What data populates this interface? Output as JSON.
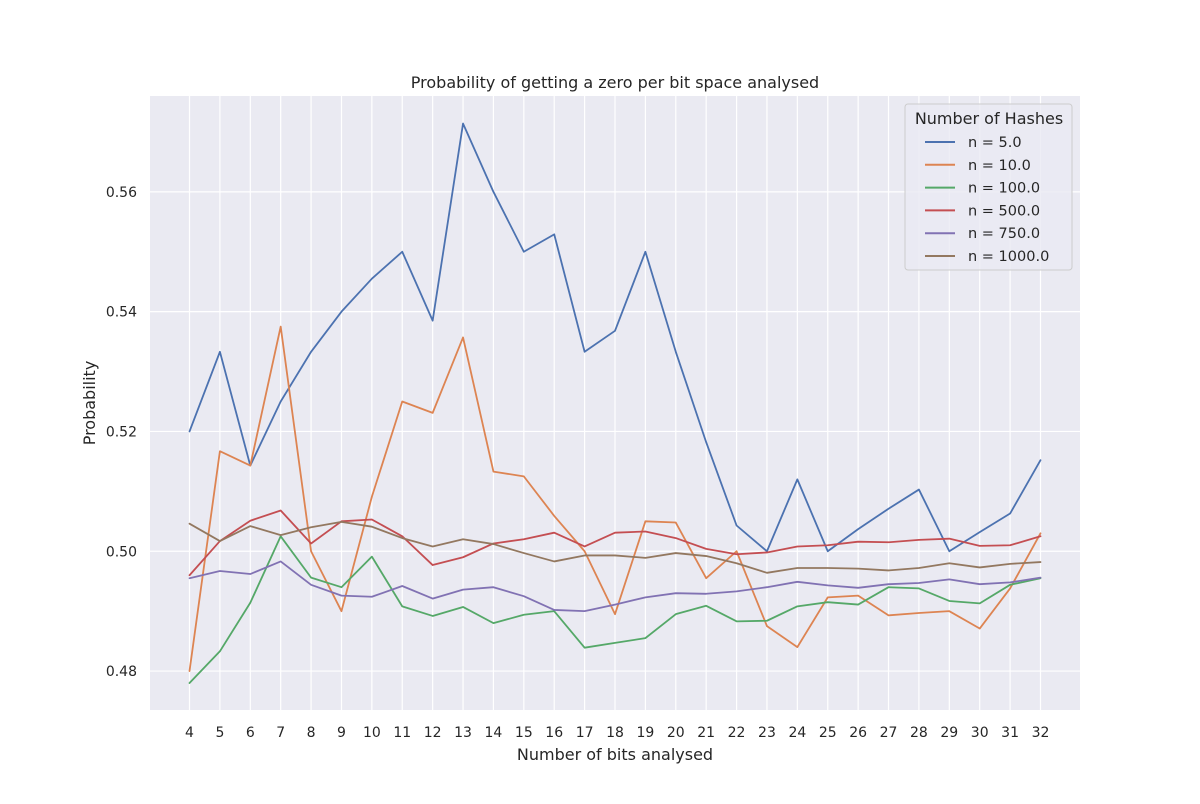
{
  "chart_data": {
    "type": "line",
    "title": "Probability of getting a zero per bit space analysed",
    "xlabel": "Number of bits analysed",
    "ylabel": "Probability",
    "x": [
      4,
      5,
      6,
      7,
      8,
      9,
      10,
      11,
      12,
      13,
      14,
      15,
      16,
      17,
      18,
      19,
      20,
      21,
      22,
      23,
      24,
      25,
      26,
      27,
      28,
      29,
      30,
      31,
      32
    ],
    "xlim": [
      2.7,
      33.3
    ],
    "ylim": [
      0.4735,
      0.576
    ],
    "yticks": [
      0.48,
      0.5,
      0.52,
      0.54,
      0.56
    ],
    "ytick_labels": [
      "0.48",
      "0.50",
      "0.52",
      "0.54",
      "0.56"
    ],
    "grid": true,
    "legend_title": "Number of Hashes",
    "legend_position": "top-right",
    "series": [
      {
        "name": "n = 5.0",
        "color": "#4c72b0",
        "values": [
          0.52,
          0.5333,
          0.5143,
          0.525,
          0.5333,
          0.54,
          0.5455,
          0.55,
          0.5385,
          0.5714,
          0.56,
          0.55,
          0.5529,
          0.5333,
          0.5368,
          0.55,
          0.5333,
          0.5182,
          0.5043,
          0.5,
          0.512,
          0.5,
          0.5037,
          0.5071,
          0.5103,
          0.5,
          0.5032,
          0.5063,
          0.5152
        ]
      },
      {
        "name": "n = 10.0",
        "color": "#dd8452",
        "values": [
          0.48,
          0.5167,
          0.5143,
          0.5375,
          0.5,
          0.49,
          0.5091,
          0.525,
          0.5231,
          0.5357,
          0.5133,
          0.5125,
          0.5059,
          0.5,
          0.4895,
          0.505,
          0.5048,
          0.4955,
          0.5,
          0.4875,
          0.484,
          0.4923,
          0.4926,
          0.4893,
          0.4897,
          0.49,
          0.4871,
          0.4938,
          0.503
        ]
      },
      {
        "name": "n = 100.0",
        "color": "#55a868",
        "values": [
          0.478,
          0.4833,
          0.4914,
          0.5025,
          0.4956,
          0.494,
          0.4991,
          0.4908,
          0.4892,
          0.4907,
          0.488,
          0.4894,
          0.49,
          0.4839,
          0.4847,
          0.4855,
          0.4895,
          0.4909,
          0.4883,
          0.4884,
          0.4908,
          0.4915,
          0.4911,
          0.494,
          0.4938,
          0.4917,
          0.4913,
          0.4944,
          0.4955
        ]
      },
      {
        "name": "n = 500.0",
        "color": "#c44e52",
        "values": [
          0.496,
          0.5017,
          0.5051,
          0.5068,
          0.5013,
          0.505,
          0.5053,
          0.5025,
          0.4977,
          0.499,
          0.5013,
          0.502,
          0.5031,
          0.5008,
          0.5031,
          0.5033,
          0.5022,
          0.5004,
          0.4995,
          0.4998,
          0.5008,
          0.501,
          0.5016,
          0.5015,
          0.5019,
          0.5021,
          0.5009,
          0.501,
          0.5025
        ]
      },
      {
        "name": "n = 750.0",
        "color": "#8172b3",
        "values": [
          0.4955,
          0.4967,
          0.4962,
          0.4983,
          0.4944,
          0.4926,
          0.4924,
          0.4942,
          0.4921,
          0.4936,
          0.494,
          0.4925,
          0.4902,
          0.49,
          0.4911,
          0.4923,
          0.493,
          0.4929,
          0.4933,
          0.494,
          0.4949,
          0.4943,
          0.4939,
          0.4945,
          0.4947,
          0.4953,
          0.4945,
          0.4948,
          0.4956
        ]
      },
      {
        "name": "n = 1000.0",
        "color": "#937860",
        "values": [
          0.5046,
          0.5017,
          0.5042,
          0.5027,
          0.504,
          0.5049,
          0.5041,
          0.5022,
          0.5008,
          0.502,
          0.5012,
          0.4997,
          0.4983,
          0.4993,
          0.4993,
          0.4989,
          0.4997,
          0.4992,
          0.498,
          0.4964,
          0.4972,
          0.4972,
          0.4971,
          0.4968,
          0.4972,
          0.498,
          0.4973,
          0.4979,
          0.4982
        ]
      }
    ]
  }
}
